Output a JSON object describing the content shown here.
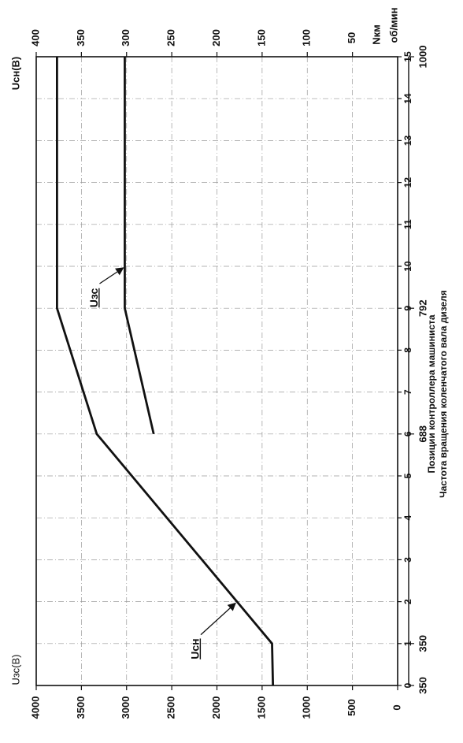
{
  "chart_data": {
    "type": "line",
    "orientation": "rotated-90-counterclockwise",
    "x": {
      "label": "Позиции контроллера машиниста",
      "ticks": [
        "0",
        "1",
        "2",
        "3",
        "4",
        "5",
        "6",
        "7",
        "8",
        "9",
        "10",
        "11",
        "12",
        "13",
        "14",
        "15"
      ],
      "range": [
        0,
        15
      ],
      "secondary_label": "Частота вращения коленчатого вала дизеля",
      "secondary_unit": "об/мин",
      "secondary_ticks": [
        {
          "x": 0,
          "label": "350"
        },
        {
          "x": 1,
          "label": "350"
        },
        {
          "x": 6,
          "label": "688"
        },
        {
          "x": 9,
          "label": "792"
        },
        {
          "x": 15,
          "label": "1000"
        }
      ],
      "end_label": "Nкм"
    },
    "y_left": {
      "label": "Uзс(В)",
      "range": [
        0,
        4000
      ],
      "ticks": [
        "0",
        "500",
        "1000",
        "1500",
        "2000",
        "2500",
        "3000",
        "3500",
        "4000"
      ]
    },
    "y_right": {
      "label": "Uсн(В)",
      "range": [
        0,
        400
      ],
      "ticks": [
        "50",
        "100",
        "150",
        "200",
        "250",
        "300",
        "350",
        "400"
      ]
    },
    "series": [
      {
        "name": "Uсн",
        "axis": "y_left",
        "points": [
          [
            0,
            1380
          ],
          [
            1,
            1390
          ],
          [
            6,
            3330
          ],
          [
            9,
            3770
          ],
          [
            15,
            3770
          ]
        ]
      },
      {
        "name": "Uзс",
        "axis": "y_left",
        "points": [
          [
            6,
            2700
          ],
          [
            9,
            3020
          ],
          [
            15,
            3020
          ]
        ]
      }
    ],
    "annotations": [
      {
        "label": "Uсн",
        "series": "Uсн",
        "at_x": 2
      },
      {
        "label": "Uзс",
        "series": "Uзс",
        "at_x": 10
      }
    ],
    "grid": true
  }
}
